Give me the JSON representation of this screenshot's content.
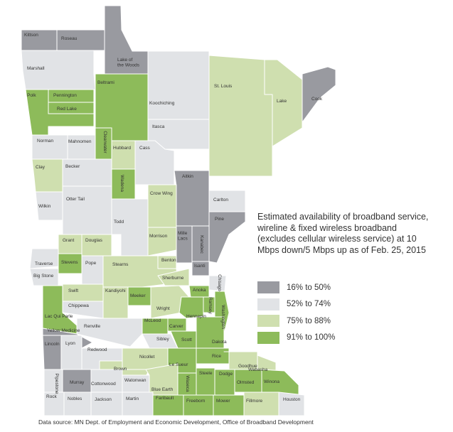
{
  "title": "Estimated availability of broadband service, wireline & fixed wireless broadband (excludes cellular wireless service) at 10 Mbps down/5 Mbps up as of Feb. 25, 2015",
  "legend": [
    {
      "label": "16% to 50%",
      "color": "#999aa0",
      "level": 1
    },
    {
      "label": "52% to 74%",
      "color": "#e1e3e6",
      "level": 2
    },
    {
      "label": "75% to 88%",
      "color": "#cfdfaf",
      "level": 3
    },
    {
      "label": "91% to 100%",
      "color": "#8dbb5a",
      "level": 4
    }
  ],
  "source": "Data source: MN Dept. of Employment and Economic Development, Office of Broadband Development",
  "counties": [
    {
      "name": "Kittson",
      "level": 1
    },
    {
      "name": "Roseau",
      "level": 1
    },
    {
      "name": "Lake of the Woods",
      "level": 1
    },
    {
      "name": "Marshall",
      "level": 2
    },
    {
      "name": "Beltrami",
      "level": 4
    },
    {
      "name": "Koochiching",
      "level": 2
    },
    {
      "name": "St. Louis",
      "level": 3
    },
    {
      "name": "Lake",
      "level": 3
    },
    {
      "name": "Cook",
      "level": 1
    },
    {
      "name": "Polk",
      "level": 4
    },
    {
      "name": "Pennington",
      "level": 4
    },
    {
      "name": "Red Lake",
      "level": 4
    },
    {
      "name": "Itasca",
      "level": 2
    },
    {
      "name": "Clearwater",
      "level": 4
    },
    {
      "name": "Norman",
      "level": 2
    },
    {
      "name": "Mahnomen",
      "level": 2
    },
    {
      "name": "Hubbard",
      "level": 3
    },
    {
      "name": "Cass",
      "level": 2
    },
    {
      "name": "Clay",
      "level": 3
    },
    {
      "name": "Becker",
      "level": 2
    },
    {
      "name": "Aitkin",
      "level": 1
    },
    {
      "name": "Carlton",
      "level": 2
    },
    {
      "name": "Wadena",
      "level": 4
    },
    {
      "name": "Crow Wing",
      "level": 3
    },
    {
      "name": "Otter Tail",
      "level": 2
    },
    {
      "name": "Wilkin",
      "level": 2
    },
    {
      "name": "Pine",
      "level": 1
    },
    {
      "name": "Todd",
      "level": 2
    },
    {
      "name": "Morrison",
      "level": 3
    },
    {
      "name": "Mille Lacs",
      "level": 1
    },
    {
      "name": "Kanabec",
      "level": 1
    },
    {
      "name": "Grant",
      "level": 3
    },
    {
      "name": "Douglas",
      "level": 3
    },
    {
      "name": "Benton",
      "level": 3
    },
    {
      "name": "Isanti",
      "level": 1
    },
    {
      "name": "Traverse",
      "level": 2
    },
    {
      "name": "Big Stone",
      "level": 2
    },
    {
      "name": "Stevens",
      "level": 4
    },
    {
      "name": "Pope",
      "level": 2
    },
    {
      "name": "Stearns",
      "level": 3
    },
    {
      "name": "Sherburne",
      "level": 3
    },
    {
      "name": "Chisago",
      "level": 2
    },
    {
      "name": "Anoka",
      "level": 4
    },
    {
      "name": "Swift",
      "level": 3
    },
    {
      "name": "Kandiyohi",
      "level": 3
    },
    {
      "name": "Meeker",
      "level": 4
    },
    {
      "name": "Wright",
      "level": 3
    },
    {
      "name": "Ramsey",
      "level": 4
    },
    {
      "name": "Washington",
      "level": 4
    },
    {
      "name": "Chippewa",
      "level": 2
    },
    {
      "name": "Hennepin",
      "level": 4
    },
    {
      "name": "Lac Qui Parle",
      "level": 4
    },
    {
      "name": "McLeod",
      "level": 4
    },
    {
      "name": "Carver",
      "level": 4
    },
    {
      "name": "Renville",
      "level": 2
    },
    {
      "name": "Yellow Medicine",
      "level": 1
    },
    {
      "name": "Scott",
      "level": 4
    },
    {
      "name": "Dakota",
      "level": 4
    },
    {
      "name": "Sibley",
      "level": 2
    },
    {
      "name": "Lincoln",
      "level": 1
    },
    {
      "name": "Lyon",
      "level": 2
    },
    {
      "name": "Redwood",
      "level": 2
    },
    {
      "name": "Nicollet",
      "level": 3
    },
    {
      "name": "Rice",
      "level": 4
    },
    {
      "name": "Goodhue",
      "level": 3
    },
    {
      "name": "Le Sueur",
      "level": 4
    },
    {
      "name": "Wabasha",
      "level": 3
    },
    {
      "name": "Brown",
      "level": 3
    },
    {
      "name": "Pipestone",
      "level": 2
    },
    {
      "name": "Murray",
      "level": 1
    },
    {
      "name": "Cottonwood",
      "level": 2
    },
    {
      "name": "Watonwan",
      "level": 2
    },
    {
      "name": "Blue Earth",
      "level": 3
    },
    {
      "name": "Waseca",
      "level": 4
    },
    {
      "name": "Steele",
      "level": 4
    },
    {
      "name": "Dodge",
      "level": 4
    },
    {
      "name": "Olmsted",
      "level": 4
    },
    {
      "name": "Winona",
      "level": 4
    },
    {
      "name": "Rock",
      "level": 2
    },
    {
      "name": "Nobles",
      "level": 2
    },
    {
      "name": "Jackson",
      "level": 2
    },
    {
      "name": "Martin",
      "level": 2
    },
    {
      "name": "Faribault",
      "level": 4
    },
    {
      "name": "Freeborn",
      "level": 4
    },
    {
      "name": "Mower",
      "level": 4
    },
    {
      "name": "Fillmore",
      "level": 3
    },
    {
      "name": "Houston",
      "level": 2
    }
  ]
}
